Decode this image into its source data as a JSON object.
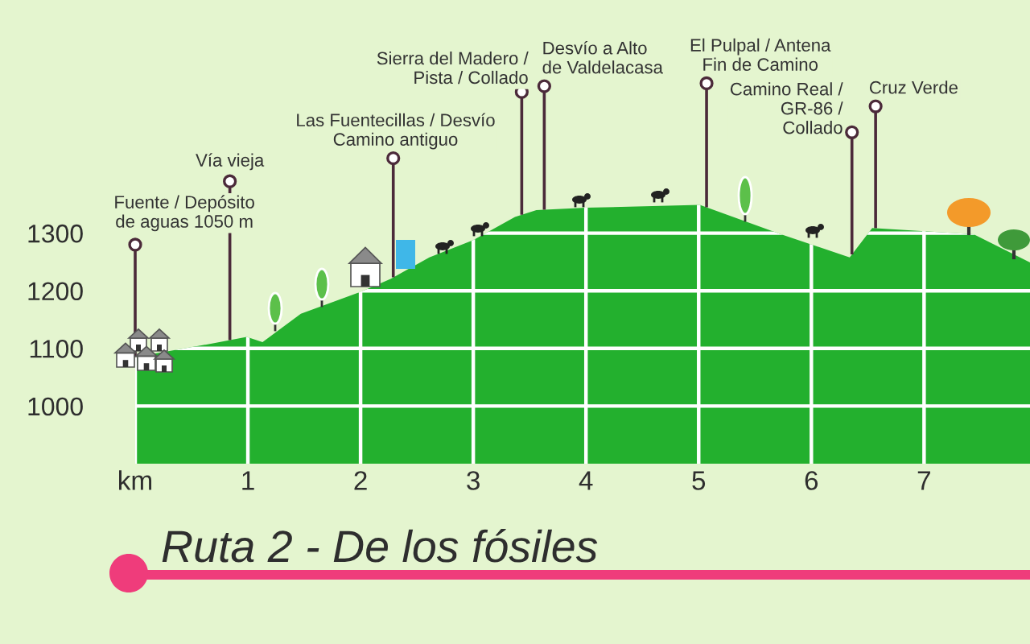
{
  "chart_data": {
    "type": "area",
    "title": "Ruta 2 - De los fósiles",
    "x": [
      0,
      0.7,
      0.99,
      1.13,
      1.47,
      2.01,
      2.27,
      2.61,
      3.0,
      3.37,
      3.56,
      4.0,
      5.01,
      5.73,
      6.34,
      6.54,
      7.44,
      7.94
    ],
    "values": [
      1085,
      1109,
      1120,
      1111,
      1160,
      1199,
      1221,
      1258,
      1288,
      1328,
      1340,
      1344,
      1349,
      1298,
      1258,
      1309,
      1298,
      1249
    ],
    "color": "#23b02e",
    "xlim": [
      0,
      7.94
    ],
    "ylim": [
      900,
      1700
    ],
    "xticks": [
      {
        "value": 0,
        "label": "km"
      },
      1,
      2,
      3,
      4,
      5,
      6,
      7
    ],
    "yticks": [
      1000,
      1100,
      1200,
      1300
    ],
    "grid": true,
    "annotations": [
      {
        "text": "Fuente / Depósito\nde aguas 1050 m",
        "x": 0,
        "y": 1280
      },
      {
        "text": "Vía vieja",
        "x": 0.84,
        "y": 1390
      },
      {
        "text": "Las Fuentecillas / Desvío\nCamino antiguo",
        "x": 2.29,
        "y": 1430
      },
      {
        "text": "Sierra del Madero /\nPista / Collado",
        "x": 3.43,
        "y": 1545
      },
      {
        "text": "Desvío a Alto\nde Valdelacasa",
        "x": 3.63,
        "y": 1555
      },
      {
        "text": "El Pulpal / Antena\nFin de Camino",
        "x": 5.07,
        "y": 1560
      },
      {
        "text": "Camino Real /\nGR-86 /\nCollado",
        "x": 6.36,
        "y": 1475
      },
      {
        "text": "Cruz Verde",
        "x": 6.57,
        "y": 1520
      }
    ]
  }
}
